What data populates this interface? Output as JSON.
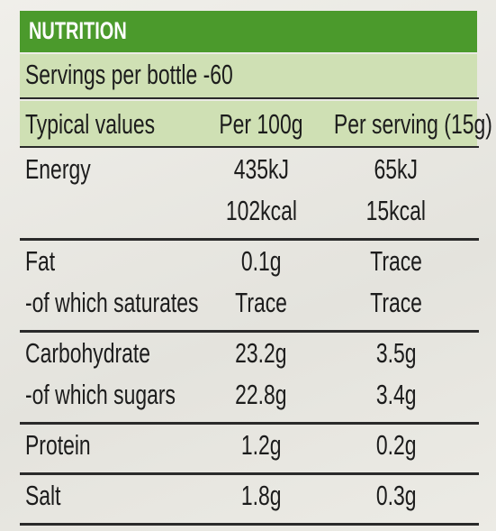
{
  "header": {
    "title": "NUTRITION",
    "servings": "Servings per bottle -60"
  },
  "table": {
    "columns": [
      "Typical values",
      "Per 100g",
      "Per serving (15g)"
    ],
    "rows": [
      {
        "label": [
          "Energy"
        ],
        "per_100g": [
          "435kJ",
          "102kcal"
        ],
        "per_serving": [
          "65kJ",
          "15kcal"
        ]
      },
      {
        "label": [
          "Fat",
          "-of which saturates"
        ],
        "per_100g": [
          "0.1g",
          "Trace"
        ],
        "per_serving": [
          "Trace",
          "Trace"
        ]
      },
      {
        "label": [
          "Carbohydrate",
          "-of which sugars"
        ],
        "per_100g": [
          "23.2g",
          "22.8g"
        ],
        "per_serving": [
          "3.5g",
          "3.4g"
        ]
      },
      {
        "label": [
          "Protein"
        ],
        "per_100g": [
          "1.2g"
        ],
        "per_serving": [
          "0.2g"
        ]
      },
      {
        "label": [
          "Salt"
        ],
        "per_100g": [
          "1.8g"
        ],
        "per_serving": [
          "0.3g"
        ]
      }
    ]
  }
}
